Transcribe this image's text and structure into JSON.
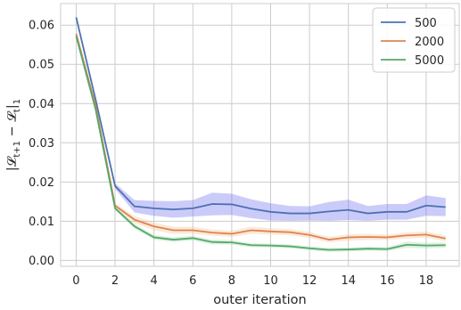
{
  "chart_data": {
    "type": "line",
    "title": "",
    "xlabel": "outer iteration",
    "ylabel": "|𝓛t+1 − 𝓛t|1",
    "ylabel_parts": {
      "main": "|𝓛",
      "sub1": "t+1",
      "mid": " − 𝓛",
      "sub2": "t",
      "close": "|",
      "sub3": "1"
    },
    "xlim": [
      -0.8,
      19.7
    ],
    "ylim": [
      -0.0015,
      0.0655
    ],
    "xticks": [
      0,
      2,
      4,
      6,
      8,
      10,
      12,
      14,
      16,
      18
    ],
    "yticks": [
      0.0,
      0.01,
      0.02,
      0.03,
      0.04,
      0.05,
      0.06
    ],
    "ytick_labels": [
      "0.00",
      "0.01",
      "0.02",
      "0.03",
      "0.04",
      "0.05",
      "0.06"
    ],
    "xtick_labels": [
      "0",
      "2",
      "4",
      "6",
      "8",
      "10",
      "12",
      "14",
      "16",
      "18"
    ],
    "grid": true,
    "legend_position": "top-right",
    "x": [
      0,
      1,
      2,
      3,
      4,
      5,
      6,
      7,
      8,
      9,
      10,
      11,
      12,
      13,
      14,
      15,
      16,
      17,
      18,
      19
    ],
    "series": [
      {
        "name": "500",
        "color": "#4c72b0",
        "band_color": "#6b6bf0",
        "values": [
          0.062,
          0.041,
          0.019,
          0.0138,
          0.0133,
          0.013,
          0.0133,
          0.0144,
          0.0143,
          0.0132,
          0.0124,
          0.012,
          0.012,
          0.0125,
          0.0129,
          0.012,
          0.0124,
          0.0124,
          0.014,
          0.0136
        ],
        "lower": [
          0.0618,
          0.0405,
          0.0183,
          0.0122,
          0.0114,
          0.0109,
          0.0112,
          0.0115,
          0.0116,
          0.0108,
          0.0102,
          0.0101,
          0.0102,
          0.0101,
          0.0103,
          0.0101,
          0.0104,
          0.0104,
          0.0114,
          0.0113
        ],
        "upper": [
          0.0622,
          0.0415,
          0.0197,
          0.0154,
          0.0152,
          0.0151,
          0.0154,
          0.0173,
          0.017,
          0.0156,
          0.0146,
          0.0139,
          0.0138,
          0.0149,
          0.0155,
          0.0139,
          0.0144,
          0.0144,
          0.0166,
          0.0159
        ]
      },
      {
        "name": "2000",
        "color": "#dd8452",
        "band_color": "#f7c08f",
        "values": [
          0.0578,
          0.0394,
          0.014,
          0.0104,
          0.0087,
          0.0077,
          0.0077,
          0.0071,
          0.0068,
          0.0077,
          0.0074,
          0.0072,
          0.0065,
          0.0053,
          0.0059,
          0.006,
          0.0059,
          0.0064,
          0.0066,
          0.0056
        ],
        "lower": [
          0.0575,
          0.039,
          0.0134,
          0.0095,
          0.0077,
          0.0068,
          0.0068,
          0.0063,
          0.006,
          0.0068,
          0.0066,
          0.0064,
          0.0057,
          0.0046,
          0.0051,
          0.0052,
          0.0052,
          0.0056,
          0.0058,
          0.0049
        ],
        "upper": [
          0.0581,
          0.0398,
          0.0146,
          0.0113,
          0.0097,
          0.0086,
          0.0086,
          0.0079,
          0.0076,
          0.0086,
          0.0082,
          0.008,
          0.0073,
          0.006,
          0.0067,
          0.0068,
          0.0066,
          0.0072,
          0.0074,
          0.0063
        ]
      },
      {
        "name": "5000",
        "color": "#55a868",
        "band_color": "#9fd7a8",
        "values": [
          0.0572,
          0.0385,
          0.0133,
          0.0087,
          0.0059,
          0.0053,
          0.0057,
          0.0047,
          0.0046,
          0.0039,
          0.0038,
          0.0036,
          0.0031,
          0.0027,
          0.0028,
          0.003,
          0.0029,
          0.004,
          0.0038,
          0.0039
        ],
        "lower": [
          0.0569,
          0.0381,
          0.0128,
          0.0081,
          0.0053,
          0.0047,
          0.0051,
          0.0041,
          0.004,
          0.0034,
          0.0033,
          0.0031,
          0.0026,
          0.0022,
          0.0023,
          0.0025,
          0.0024,
          0.0032,
          0.0031,
          0.0032
        ],
        "upper": [
          0.0575,
          0.0389,
          0.0138,
          0.0093,
          0.0065,
          0.0059,
          0.0063,
          0.0053,
          0.0052,
          0.0044,
          0.0043,
          0.0041,
          0.0036,
          0.0032,
          0.0033,
          0.0035,
          0.0034,
          0.0048,
          0.0045,
          0.0046
        ]
      }
    ]
  }
}
